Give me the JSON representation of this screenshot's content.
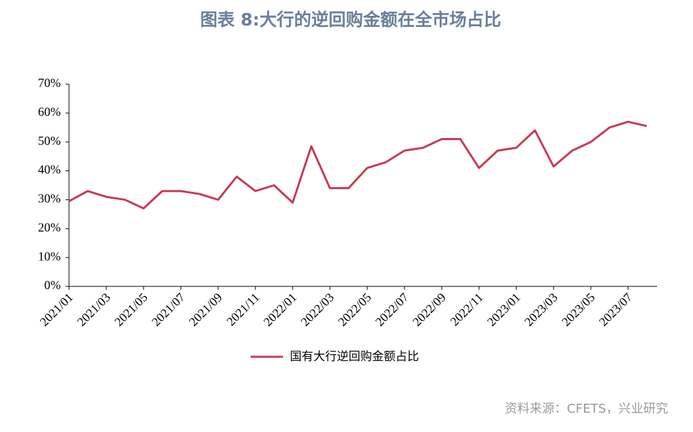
{
  "chart_data": {
    "type": "line",
    "title": "图表 8:大行的逆回购金额在全市场占比",
    "source": "资料来源：CFETS，兴业研究",
    "categories": [
      "2021/01",
      "2021/02",
      "2021/03",
      "2021/04",
      "2021/05",
      "2021/06",
      "2021/07",
      "2021/08",
      "2021/09",
      "2021/10",
      "2021/11",
      "2021/12",
      "2022/01",
      "2022/02",
      "2022/03",
      "2022/04",
      "2022/05",
      "2022/06",
      "2022/07",
      "2022/08",
      "2022/09",
      "2022/10",
      "2022/11",
      "2022/12",
      "2023/01",
      "2023/02",
      "2023/03",
      "2023/04",
      "2023/05",
      "2023/06",
      "2023/07",
      "2023/08"
    ],
    "series": [
      {
        "name": "国有大行逆回购金额占比",
        "color": "#c73b52",
        "values": [
          29.5,
          33,
          31,
          30,
          27,
          33,
          33,
          32,
          30,
          38,
          33,
          35,
          29,
          48.5,
          34,
          34,
          41,
          43,
          47,
          48,
          51,
          51,
          41,
          47,
          48,
          54,
          41.5,
          47,
          50,
          55,
          57,
          55.5
        ]
      }
    ],
    "xticks": [
      "2021/01",
      "2021/03",
      "2021/05",
      "2021/07",
      "2021/09",
      "2021/11",
      "2022/01",
      "2022/03",
      "2022/05",
      "2022/07",
      "2022/09",
      "2022/11",
      "2023/01",
      "2023/03",
      "2023/05",
      "2023/07"
    ],
    "ylim": [
      0,
      70
    ],
    "yticks": [
      {
        "value": 0,
        "label": "0%"
      },
      {
        "value": 10,
        "label": "10%"
      },
      {
        "value": 20,
        "label": "20%"
      },
      {
        "value": 30,
        "label": "30%"
      },
      {
        "value": 40,
        "label": "40%"
      },
      {
        "value": 50,
        "label": "50%"
      },
      {
        "value": 60,
        "label": "60%"
      },
      {
        "value": 70,
        "label": "70%"
      }
    ],
    "grid": false
  }
}
